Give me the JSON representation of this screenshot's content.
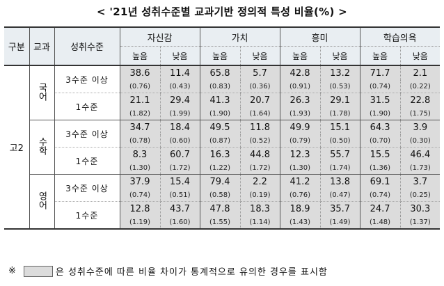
{
  "title": "< '21년 성취수준별 교과기반 정의적 특성 비율(%) >",
  "headers": {
    "group": "구분",
    "subject": "교과",
    "level": "성취수준",
    "traits": [
      "자신감",
      "가치",
      "흥미",
      "학습의욕"
    ],
    "high": "높음",
    "low": "낮음"
  },
  "grade": "고2",
  "subjects": [
    {
      "name": "국어",
      "rows": [
        {
          "level": "3수준 이상",
          "values": [
            "38.6",
            "11.4",
            "65.8",
            "5.7",
            "42.8",
            "13.2",
            "71.7",
            "2.1"
          ],
          "se": [
            "(0.76)",
            "(0.43)",
            "(0.83)",
            "(0.36)",
            "(0.91)",
            "(0.53)",
            "(0.74)",
            "(0.22)"
          ],
          "shaded": [
            true,
            true,
            true,
            true,
            true,
            true,
            true,
            true
          ]
        },
        {
          "level": "1수준",
          "values": [
            "21.1",
            "29.4",
            "41.3",
            "20.7",
            "26.3",
            "29.1",
            "31.5",
            "22.8"
          ],
          "se": [
            "(1.82)",
            "(1.99)",
            "(1.90)",
            "(1.64)",
            "(1.93)",
            "(1.78)",
            "(1.90)",
            "(1.75)"
          ],
          "shaded": [
            true,
            true,
            true,
            true,
            true,
            true,
            true,
            true
          ]
        }
      ]
    },
    {
      "name": "수학",
      "rows": [
        {
          "level": "3수준 이상",
          "values": [
            "34.7",
            "18.4",
            "49.5",
            "11.8",
            "49.9",
            "15.1",
            "64.3",
            "3.9"
          ],
          "se": [
            "(0.78)",
            "(0.60)",
            "(0.87)",
            "(0.52)",
            "(0.79)",
            "(0.50)",
            "(0.70)",
            "(0.30)"
          ],
          "shaded": [
            true,
            true,
            true,
            true,
            true,
            true,
            true,
            true
          ]
        },
        {
          "level": "1수준",
          "values": [
            "8.3",
            "60.7",
            "16.3",
            "44.8",
            "12.3",
            "55.7",
            "15.5",
            "46.4"
          ],
          "se": [
            "(1.30)",
            "(1.72)",
            "(1.22)",
            "(1.72)",
            "(1.30)",
            "(1.74)",
            "(1.36)",
            "(1.73)"
          ],
          "shaded": [
            true,
            true,
            true,
            true,
            true,
            true,
            true,
            true
          ]
        }
      ]
    },
    {
      "name": "영어",
      "rows": [
        {
          "level": "3수준 이상",
          "values": [
            "37.9",
            "15.4",
            "79.4",
            "2.2",
            "41.2",
            "13.8",
            "69.1",
            "3.7"
          ],
          "se": [
            "(0.74)",
            "(0.51)",
            "(0.58)",
            "(0.19)",
            "(0.76)",
            "(0.47)",
            "(0.74)",
            "(0.25)"
          ],
          "shaded": [
            true,
            true,
            true,
            true,
            true,
            true,
            true,
            true
          ]
        },
        {
          "level": "1수준",
          "values": [
            "12.8",
            "43.7",
            "47.8",
            "18.3",
            "18.9",
            "35.7",
            "24.7",
            "30.3"
          ],
          "se": [
            "(1.19)",
            "(1.60)",
            "(1.55)",
            "(1.14)",
            "(1.43)",
            "(1.49)",
            "(1.48)",
            "(1.37)"
          ],
          "shaded": [
            true,
            true,
            true,
            true,
            true,
            true,
            true,
            true
          ]
        }
      ]
    }
  ],
  "footnote": {
    "mark": "※",
    "text": "은 성취수준에 따른 비율 차이가 통계적으로 유의한 경우를 표시함"
  },
  "colors": {
    "shade": "#dcdcdc",
    "header_bg": "#e9eef2"
  }
}
